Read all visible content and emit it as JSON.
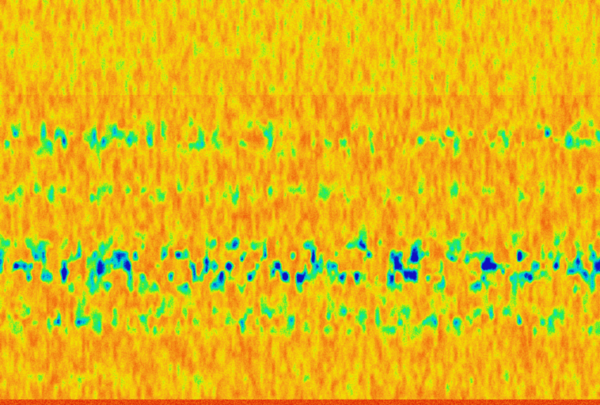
{
  "image": {
    "kind": "spectrogram-like heatmap texture",
    "colormap": [
      "#d81808",
      "#f06a10",
      "#f5a818",
      "#f2e400",
      "#30f040",
      "#00d8e0",
      "#1010c0"
    ],
    "background_color": "#f06010"
  }
}
